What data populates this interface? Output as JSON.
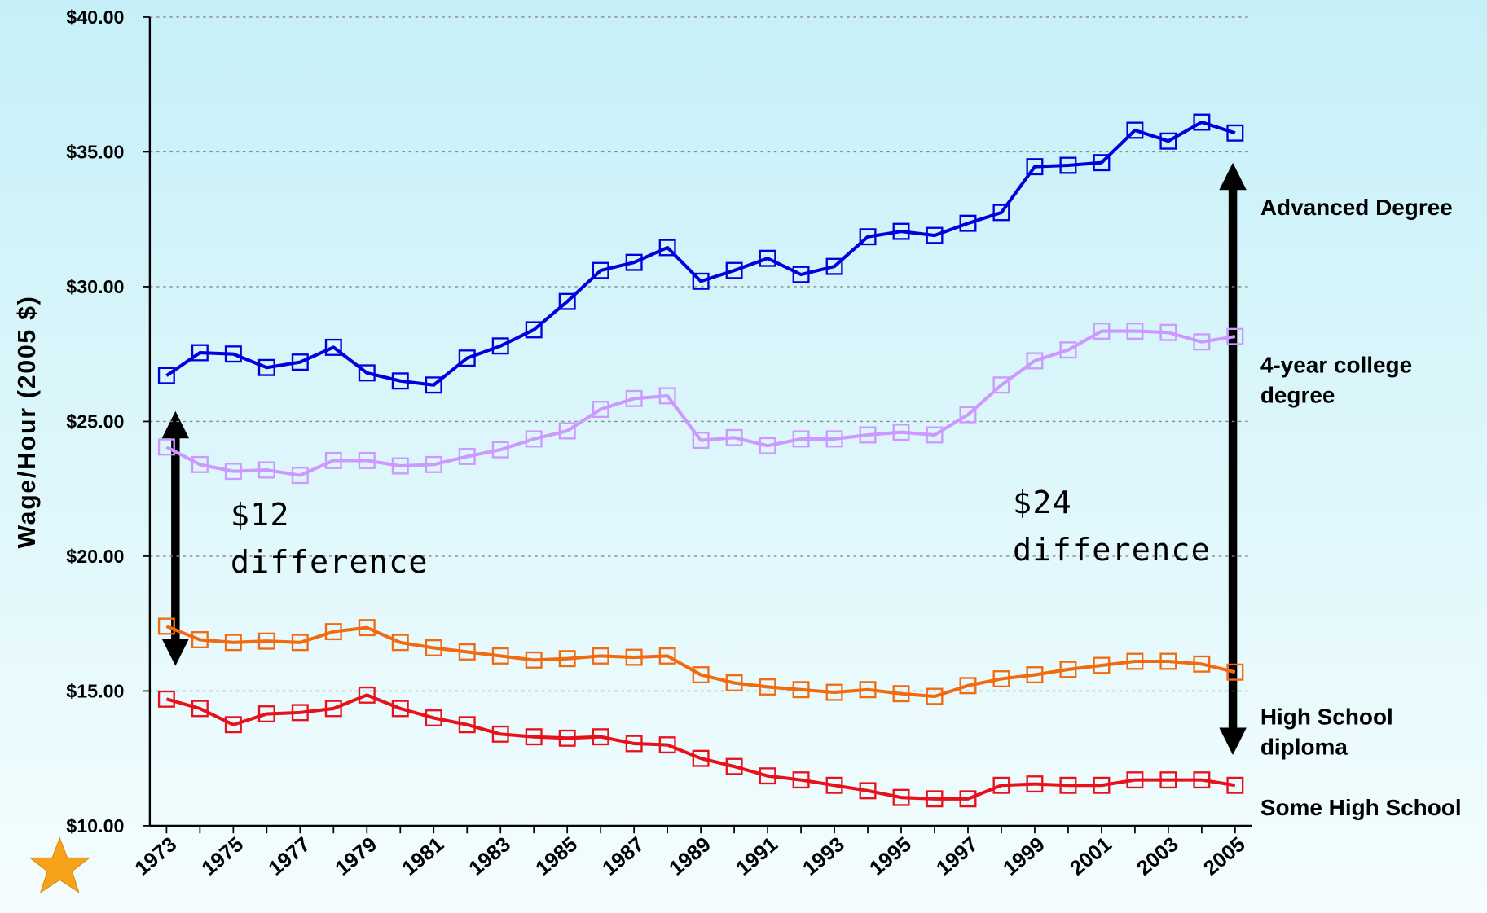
{
  "chart_data": {
    "type": "line",
    "y_label": "Wage/Hour (2005 $)",
    "x": [
      1973,
      1974,
      1975,
      1976,
      1977,
      1978,
      1979,
      1980,
      1981,
      1982,
      1983,
      1984,
      1985,
      1986,
      1987,
      1988,
      1989,
      1990,
      1991,
      1992,
      1993,
      1994,
      1995,
      1996,
      1997,
      1998,
      1999,
      2000,
      2001,
      2002,
      2003,
      2004,
      2005
    ],
    "xlim": [
      1972.5,
      2005.5
    ],
    "xticks": [
      1973,
      1975,
      1977,
      1979,
      1981,
      1983,
      1985,
      1987,
      1989,
      1991,
      1993,
      1995,
      1997,
      1999,
      2001,
      2003,
      2005
    ],
    "ylim": [
      10,
      40
    ],
    "yticks": [
      {
        "value": 10,
        "label": "$10.00"
      },
      {
        "value": 15,
        "label": "$15.00"
      },
      {
        "value": 20,
        "label": "$20.00"
      },
      {
        "value": 25,
        "label": "$25.00"
      },
      {
        "value": 30,
        "label": "$30.00"
      },
      {
        "value": 35,
        "label": "$35.00"
      },
      {
        "value": 40,
        "label": "$40.00"
      }
    ],
    "grid": true,
    "series": [
      {
        "name": "Advanced Degree",
        "color": "#0000dd",
        "values": [
          26.7,
          27.55,
          27.5,
          27.0,
          27.2,
          27.75,
          26.8,
          26.5,
          26.35,
          27.35,
          27.8,
          28.4,
          29.45,
          30.6,
          30.9,
          31.45,
          30.2,
          30.6,
          31.05,
          30.45,
          30.75,
          31.85,
          32.05,
          31.9,
          32.35,
          32.75,
          34.45,
          34.5,
          34.6,
          35.8,
          35.4,
          36.1,
          35.7
        ]
      },
      {
        "name": "4-year college degree",
        "color": "#cc99ff",
        "values": [
          24.05,
          23.4,
          23.15,
          23.2,
          23.0,
          23.55,
          23.55,
          23.35,
          23.4,
          23.7,
          23.95,
          24.35,
          24.65,
          25.45,
          25.85,
          25.95,
          24.3,
          24.4,
          24.1,
          24.35,
          24.35,
          24.5,
          24.6,
          24.5,
          25.25,
          26.35,
          27.25,
          27.65,
          28.35,
          28.35,
          28.3,
          27.95,
          28.15
        ]
      },
      {
        "name": "High School diploma",
        "color": "#f26a10",
        "values": [
          17.4,
          16.9,
          16.8,
          16.85,
          16.8,
          17.2,
          17.35,
          16.8,
          16.6,
          16.45,
          16.3,
          16.15,
          16.2,
          16.3,
          16.25,
          16.3,
          15.6,
          15.3,
          15.15,
          15.05,
          14.95,
          15.05,
          14.9,
          14.8,
          15.2,
          15.45,
          15.6,
          15.8,
          15.95,
          16.1,
          16.1,
          16.0,
          15.7
        ]
      },
      {
        "name": "Some High School",
        "color": "#e8101a",
        "values": [
          14.7,
          14.35,
          13.75,
          14.15,
          14.2,
          14.35,
          14.85,
          14.35,
          14.0,
          13.75,
          13.4,
          13.3,
          13.25,
          13.3,
          13.05,
          13.0,
          12.5,
          12.2,
          11.85,
          11.7,
          11.5,
          11.3,
          11.05,
          11.0,
          11.0,
          11.5,
          11.55,
          11.5,
          11.5,
          11.7,
          11.7,
          11.7,
          11.5
        ]
      }
    ],
    "annotations": [
      "$12 difference",
      "$24 difference"
    ]
  }
}
